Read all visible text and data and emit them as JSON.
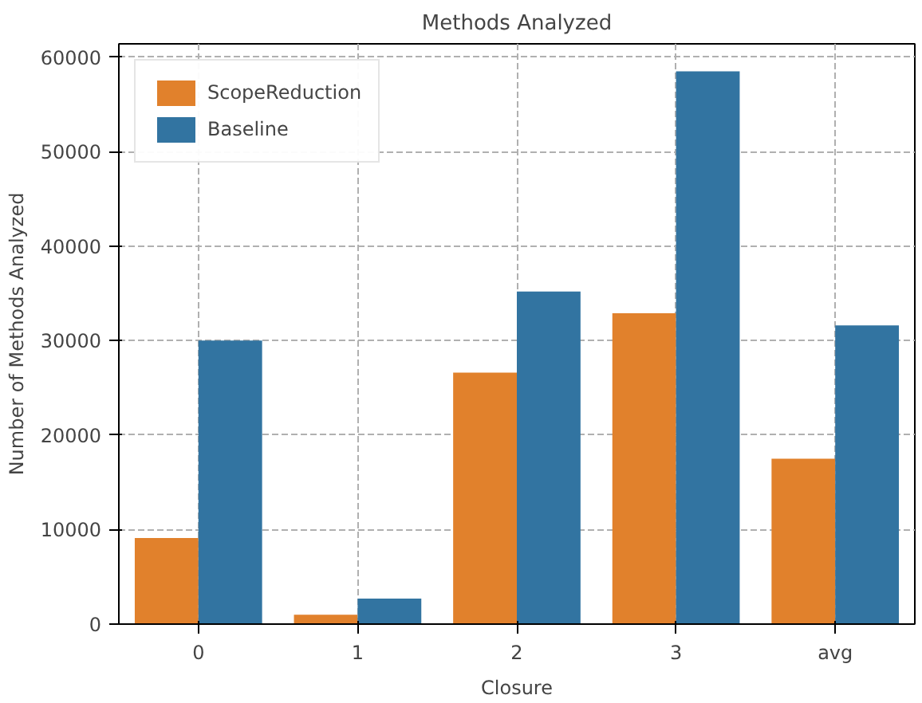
{
  "chart_data": {
    "type": "bar",
    "title": "Methods Analyzed",
    "xlabel": "Closure",
    "ylabel": "Number of Methods Analyzed",
    "categories": [
      "0",
      "1",
      "2",
      "3",
      "avg"
    ],
    "series": [
      {
        "name": "ScopeReduction",
        "color": "#e1812c",
        "values": [
          9100,
          1000,
          26600,
          32900,
          17500
        ]
      },
      {
        "name": "Baseline",
        "color": "#3274a1",
        "values": [
          30000,
          2700,
          35200,
          58500,
          31600
        ]
      }
    ],
    "ylim": [
      0,
      61400
    ],
    "yticks": [
      0,
      10000,
      20000,
      30000,
      40000,
      50000,
      60000
    ],
    "grid": true,
    "legend": "top left"
  }
}
